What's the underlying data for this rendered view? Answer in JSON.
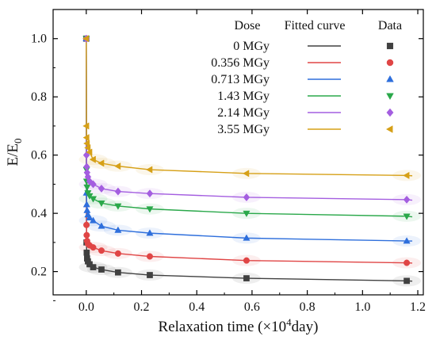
{
  "chart_data": {
    "type": "scatter",
    "xlabel": "Relaxation time (×10⁴day)",
    "xlabel_parts": {
      "prefix": "Relaxation time (×10",
      "sup": "4",
      "suffix": "day)"
    },
    "ylabel": "E/E₀",
    "ylabel_parts": {
      "main": "E/E",
      "sub": "0"
    },
    "xlim": [
      -0.12,
      1.22
    ],
    "ylim": [
      0.12,
      1.1
    ],
    "x_ticks": [
      "0.0",
      "0.2",
      "0.4",
      "0.6",
      "0.8",
      "1.0",
      "1.2"
    ],
    "x_tick_values": [
      0.0,
      0.2,
      0.4,
      0.6,
      0.8,
      1.0,
      1.2
    ],
    "y_ticks": [
      "0.2",
      "0.4",
      "0.6",
      "0.8",
      "1.0"
    ],
    "y_tick_values": [
      0.2,
      0.4,
      0.6,
      0.8,
      1.0
    ],
    "grid": false,
    "legend": {
      "placement": "top-right",
      "header": {
        "dose": "Dose",
        "fitted": "Fitted curve",
        "data": "Data"
      }
    },
    "x": [
      0,
      0.0008,
      0.0015,
      0.003,
      0.006,
      0.012,
      0.025,
      0.055,
      0.115,
      0.23,
      0.58,
      1.16
    ],
    "series": [
      {
        "name": "0 MGy",
        "color": "#404040",
        "marker": "square",
        "y": [
          1.0,
          0.3,
          0.265,
          0.245,
          0.235,
          0.225,
          0.215,
          0.207,
          0.197,
          0.188,
          0.177,
          0.168
        ],
        "fit_plateau": 0.167
      },
      {
        "name": "0.356 MGy",
        "color": "#e04545",
        "marker": "circle",
        "y": [
          1.0,
          0.36,
          0.325,
          0.305,
          0.295,
          0.29,
          0.283,
          0.272,
          0.262,
          0.252,
          0.238,
          0.23
        ],
        "fit_plateau": 0.229
      },
      {
        "name": "0.713 MGy",
        "color": "#2e6fdc",
        "marker": "triangle-up",
        "y": [
          1.0,
          0.47,
          0.43,
          0.41,
          0.395,
          0.385,
          0.375,
          0.356,
          0.342,
          0.332,
          0.315,
          0.305
        ],
        "fit_plateau": 0.305
      },
      {
        "name": "1.43 MGy",
        "color": "#2aa84a",
        "marker": "triangle-down",
        "y": [
          1.0,
          0.55,
          0.51,
          0.49,
          0.47,
          0.46,
          0.45,
          0.435,
          0.425,
          0.415,
          0.4,
          0.39
        ],
        "fit_plateau": 0.388
      },
      {
        "name": "2.14 MGy",
        "color": "#a45ee0",
        "marker": "diamond",
        "y": [
          1.0,
          0.6,
          0.56,
          0.54,
          0.525,
          0.51,
          0.5,
          0.485,
          0.475,
          0.468,
          0.455,
          0.447
        ],
        "fit_plateau": 0.445
      },
      {
        "name": "3.55 MGy",
        "color": "#d6a017",
        "marker": "triangle-left",
        "y": [
          1.0,
          0.7,
          0.66,
          0.64,
          0.625,
          0.61,
          0.585,
          0.572,
          0.562,
          0.55,
          0.537,
          0.53
        ],
        "fit_plateau": 0.529
      }
    ]
  }
}
